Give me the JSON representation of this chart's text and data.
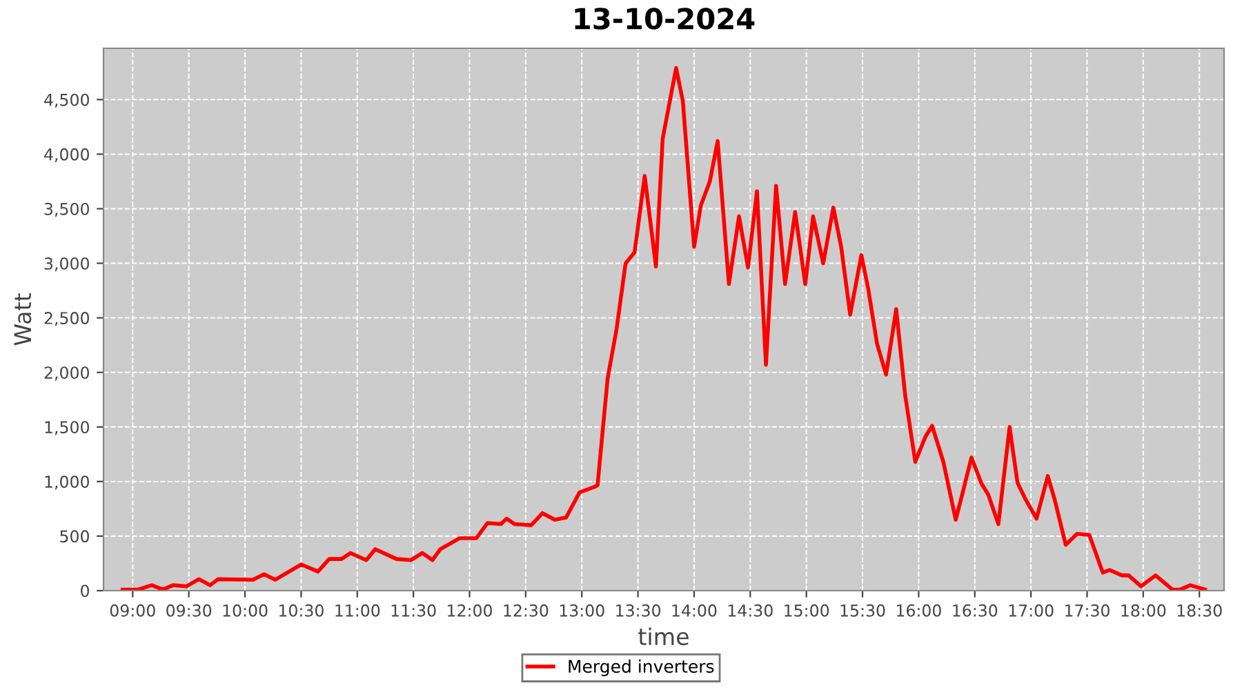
{
  "chart_data": {
    "type": "line",
    "title": "13-10-2024",
    "xlabel": "time",
    "ylabel": "Watt",
    "xlim": [
      8.74,
      18.72
    ],
    "ylim": [
      0,
      4970
    ],
    "xticks": [
      {
        "value": 9,
        "label": "09:00"
      },
      {
        "value": 9.5,
        "label": "09:30"
      },
      {
        "value": 10,
        "label": "10:00"
      },
      {
        "value": 10.5,
        "label": "10:30"
      },
      {
        "value": 11,
        "label": "11:00"
      },
      {
        "value": 11.5,
        "label": "11:30"
      },
      {
        "value": 12,
        "label": "12:00"
      },
      {
        "value": 12.5,
        "label": "12:30"
      },
      {
        "value": 13,
        "label": "13:00"
      },
      {
        "value": 13.5,
        "label": "13:30"
      },
      {
        "value": 14,
        "label": "14:00"
      },
      {
        "value": 14.5,
        "label": "14:30"
      },
      {
        "value": 15,
        "label": "15:00"
      },
      {
        "value": 15.5,
        "label": "15:30"
      },
      {
        "value": 16,
        "label": "16:00"
      },
      {
        "value": 16.5,
        "label": "16:30"
      },
      {
        "value": 17,
        "label": "17:00"
      },
      {
        "value": 17.5,
        "label": "17:30"
      },
      {
        "value": 18,
        "label": "18:00"
      },
      {
        "value": 18.5,
        "label": "18:30"
      }
    ],
    "yticks": [
      0,
      500,
      {
        "value": 1000,
        "label": "1,000"
      },
      {
        "value": 1500,
        "label": "1,500"
      },
      {
        "value": 2000,
        "label": "2,000"
      },
      {
        "value": 2500,
        "label": "2,500"
      },
      {
        "value": 3000,
        "label": "3,000"
      },
      {
        "value": 3500,
        "label": "3,500"
      },
      {
        "value": 4000,
        "label": "4,000"
      },
      {
        "value": 4500,
        "label": "4,500"
      }
    ],
    "grid": true,
    "legend": "bottom",
    "marker": "none",
    "line_style": "solid",
    "series": [
      {
        "name": "Merged inverters",
        "color": "#ff0000",
        "x": [
          8.91,
          9.05,
          9.17,
          9.27,
          9.36,
          9.48,
          9.59,
          9.69,
          9.76,
          10.07,
          10.17,
          10.27,
          10.5,
          10.65,
          10.75,
          10.86,
          10.94,
          11.08,
          11.16,
          11.35,
          11.48,
          11.58,
          11.67,
          11.74,
          11.91,
          12.06,
          12.16,
          12.28,
          12.33,
          12.4,
          12.55,
          12.65,
          12.76,
          12.86,
          12.98,
          13.11,
          13.14,
          13.23,
          13.31,
          13.39,
          13.47,
          13.56,
          13.66,
          13.72,
          13.84,
          13.9,
          14.0,
          14.06,
          14.14,
          14.21,
          14.31,
          14.4,
          14.48,
          14.56,
          14.64,
          14.73,
          14.81,
          14.9,
          14.99,
          15.06,
          15.15,
          15.24,
          15.31,
          15.39,
          15.49,
          15.55,
          15.63,
          15.71,
          15.8,
          15.88,
          15.97,
          16.06,
          16.12,
          16.22,
          16.33,
          16.39,
          16.47,
          16.56,
          16.62,
          16.71,
          16.81,
          16.88,
          16.95,
          17.05,
          17.15,
          17.21,
          17.31,
          17.41,
          17.52,
          17.64,
          17.7,
          17.81,
          17.87,
          17.98,
          18.11,
          18.26,
          18.33,
          18.42,
          18.55
        ],
        "values": [
          10,
          10,
          50,
          10,
          50,
          40,
          105,
          50,
          105,
          100,
          150,
          100,
          240,
          175,
          290,
          290,
          345,
          280,
          380,
          290,
          280,
          345,
          280,
          380,
          480,
          480,
          620,
          610,
          660,
          610,
          600,
          710,
          650,
          670,
          900,
          950,
          965,
          1944,
          2400,
          3000,
          3100,
          3800,
          2970,
          4140,
          4790,
          4485,
          3150,
          3530,
          3750,
          4120,
          2810,
          3430,
          2960,
          3660,
          2070,
          3710,
          2810,
          3470,
          2810,
          3430,
          3000,
          3510,
          3150,
          2530,
          3075,
          2770,
          2260,
          1980,
          2580,
          1790,
          1180,
          1410,
          1510,
          1180,
          650,
          890,
          1220,
          980,
          880,
          610,
          1500,
          990,
          840,
          660,
          1050,
          840,
          420,
          520,
          510,
          165,
          190,
          140,
          140,
          40,
          140,
          10,
          10,
          50,
          10
        ]
      }
    ]
  }
}
